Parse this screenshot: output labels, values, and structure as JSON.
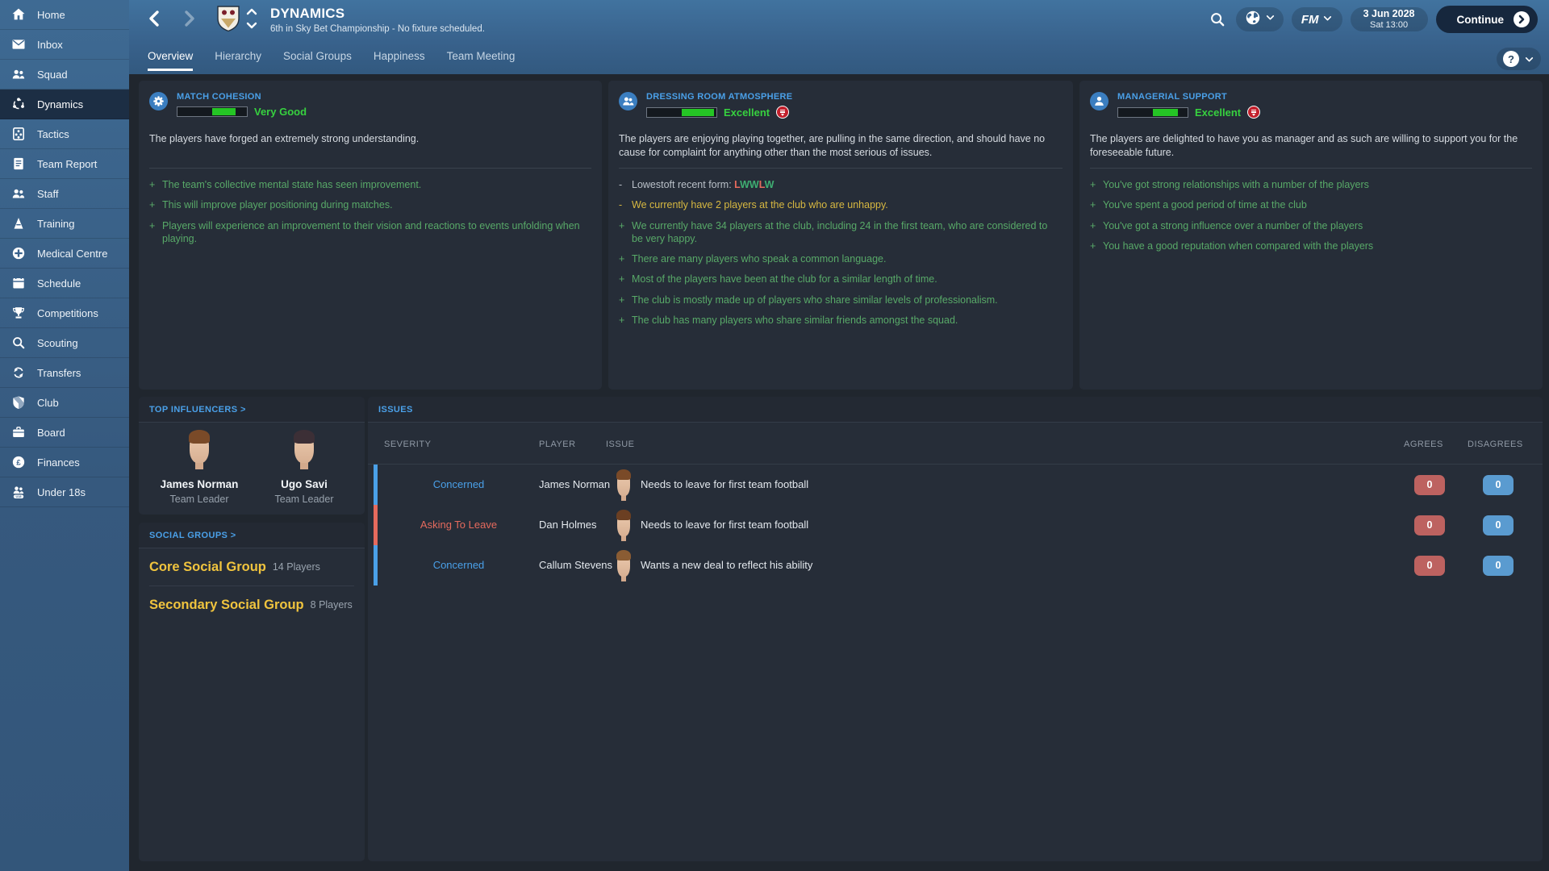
{
  "header": {
    "title": "DYNAMICS",
    "subtitle": "6th in Sky Bet Championship - No fixture scheduled.",
    "fm_label": "FM",
    "date_line1": "3 Jun 2028",
    "date_line2": "Sat 13:00",
    "continue_label": "Continue",
    "help_label": "?"
  },
  "tabs": [
    {
      "label": "Overview",
      "active": true
    },
    {
      "label": "Hierarchy",
      "active": false
    },
    {
      "label": "Social Groups",
      "active": false
    },
    {
      "label": "Happiness",
      "active": false
    },
    {
      "label": "Team Meeting",
      "active": false
    }
  ],
  "sidebar": {
    "items": [
      {
        "label": "Home",
        "icon": "home",
        "active": false
      },
      {
        "label": "Inbox",
        "icon": "inbox",
        "active": false
      },
      {
        "label": "Squad",
        "icon": "squad",
        "active": false
      },
      {
        "label": "Dynamics",
        "icon": "dynamics",
        "active": true
      },
      {
        "label": "Tactics",
        "icon": "tactics",
        "active": false
      },
      {
        "label": "Team Report",
        "icon": "team-report",
        "active": false
      },
      {
        "label": "Staff",
        "icon": "staff",
        "active": false
      },
      {
        "label": "Training",
        "icon": "training",
        "active": false
      },
      {
        "label": "Medical Centre",
        "icon": "medical",
        "active": false
      },
      {
        "label": "Schedule",
        "icon": "schedule",
        "active": false
      },
      {
        "label": "Competitions",
        "icon": "competitions",
        "active": false
      },
      {
        "label": "Scouting",
        "icon": "scouting",
        "active": false
      },
      {
        "label": "Transfers",
        "icon": "transfers",
        "active": false
      },
      {
        "label": "Club",
        "icon": "club",
        "active": false
      },
      {
        "label": "Board",
        "icon": "board",
        "active": false
      },
      {
        "label": "Finances",
        "icon": "finances",
        "active": false
      },
      {
        "label": "Under 18s",
        "icon": "under18s",
        "active": false
      }
    ]
  },
  "panels": [
    {
      "id": "match-cohesion",
      "label": "MATCH COHESION",
      "icon": "gear",
      "value": "Very Good",
      "has_badge": false,
      "bar": {
        "green_start_pct": 50,
        "green_end_pct": 84
      },
      "description": "The players have forged an extremely strong understanding.",
      "bullets": [
        {
          "sign": "+",
          "tone": "green",
          "text": "The team's collective mental state has seen improvement."
        },
        {
          "sign": "+",
          "tone": "green",
          "text": "This will improve player positioning during matches."
        },
        {
          "sign": "+",
          "tone": "green",
          "text": "Players will experience an improvement to their vision and reactions to events unfolding when playing."
        }
      ]
    },
    {
      "id": "dressing-room-atmosphere",
      "label": "DRESSING ROOM ATMOSPHERE",
      "icon": "people",
      "value": "Excellent",
      "has_badge": true,
      "bar": {
        "green_start_pct": 50,
        "green_end_pct": 97
      },
      "description": "The players are enjoying playing together, are pulling in the same direction, and should have no cause for complaint for anything other than the most serious of issues.",
      "bullets": [
        {
          "sign": "-",
          "tone": "grey",
          "text": "Lowestoft recent form: ",
          "form": [
            {
              "l": "L",
              "c": "#e56a5d"
            },
            {
              "l": "W",
              "c": "#3fae72"
            },
            {
              "l": "W",
              "c": "#3fae72"
            },
            {
              "l": "L",
              "c": "#e56a5d"
            },
            {
              "l": "W",
              "c": "#3fae72"
            }
          ]
        },
        {
          "sign": "-",
          "tone": "yellow",
          "text": "We currently have 2 players at the club who are unhappy."
        },
        {
          "sign": "+",
          "tone": "green",
          "text": "We currently have 34 players at the club, including 24 in the first team, who are considered to be very happy."
        },
        {
          "sign": "+",
          "tone": "green",
          "text": "There are many players who speak a common language."
        },
        {
          "sign": "+",
          "tone": "green",
          "text": "Most of the players have been at the club for a similar length of time."
        },
        {
          "sign": "+",
          "tone": "green",
          "text": "The club is mostly made up of players who share similar levels of professionalism."
        },
        {
          "sign": "+",
          "tone": "green",
          "text": "The club has many players who share similar friends amongst the squad."
        }
      ]
    },
    {
      "id": "managerial-support",
      "label": "MANAGERIAL SUPPORT",
      "icon": "person",
      "value": "Excellent",
      "has_badge": true,
      "bar": {
        "green_start_pct": 50,
        "green_end_pct": 86
      },
      "description": "The players are delighted to have you as manager and as such are willing to support you for the foreseeable future.",
      "bullets": [
        {
          "sign": "+",
          "tone": "green",
          "text": "You've got strong relationships with a number of the players"
        },
        {
          "sign": "+",
          "tone": "green",
          "text": "You've spent a good period of time at the club"
        },
        {
          "sign": "+",
          "tone": "green",
          "text": "You've got a strong influence over a number of the players"
        },
        {
          "sign": "+",
          "tone": "green",
          "text": "You have a good reputation when compared with the players"
        }
      ]
    }
  ],
  "top_influencers": {
    "title": "TOP INFLUENCERS >",
    "players": [
      {
        "name": "James Norman",
        "role": "Team Leader",
        "hair": "#7a4a28"
      },
      {
        "name": "Ugo Savi",
        "role": "Team Leader",
        "hair": "#3c2f36"
      }
    ]
  },
  "social_groups": {
    "title": "SOCIAL GROUPS >",
    "groups": [
      {
        "name": "Core Social Group",
        "count": "14 Players"
      },
      {
        "name": "Secondary Social Group",
        "count": "8 Players"
      }
    ]
  },
  "issues": {
    "title": "ISSUES",
    "columns": [
      "SEVERITY",
      "PLAYER",
      "ISSUE",
      "AGREES",
      "DISAGREES"
    ],
    "rows": [
      {
        "severity": "Concerned",
        "severity_tone": "blue",
        "player": "James Norman",
        "issue": "Needs to leave for first team football",
        "agrees": "0",
        "disagrees": "0",
        "hair": "#7a4a28"
      },
      {
        "severity": "Asking To Leave",
        "severity_tone": "red",
        "player": "Dan Holmes",
        "issue": "Needs to leave for first team football",
        "agrees": "0",
        "disagrees": "0",
        "hair": "#6b3f22"
      },
      {
        "severity": "Concerned",
        "severity_tone": "blue",
        "player": "Callum Stevens",
        "issue": "Wants a new deal to reflect his ability",
        "agrees": "0",
        "disagrees": "0",
        "hair": "#8a5c33"
      }
    ]
  },
  "colors": {
    "accent_blue": "#4aa0e8",
    "positive_green": "#58a968",
    "value_green": "#37d13f",
    "bar_green": "#25c525",
    "warning_yellow": "#d7b841",
    "negative_red": "#e56a5d",
    "agree_badge": "#bd6260",
    "disagree_badge": "#5a9bd0",
    "sidebar_blue": "#36597e",
    "selected_navy": "#1c2e44"
  }
}
